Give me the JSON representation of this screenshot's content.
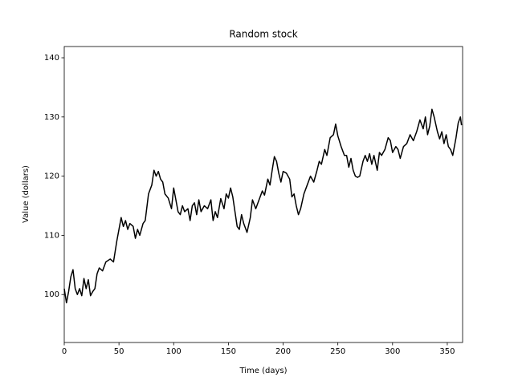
{
  "chart_data": {
    "type": "line",
    "title": "Random stock",
    "x_label": "Time (days)",
    "y_label": "Value (dollars)",
    "x": [
      0,
      2,
      4,
      6,
      8,
      10,
      12,
      14,
      16,
      18,
      20,
      22,
      24,
      26,
      28,
      30,
      32,
      35,
      38,
      42,
      45,
      48,
      50,
      52,
      54,
      56,
      58,
      60,
      63,
      65,
      67,
      69,
      72,
      74,
      77,
      80,
      82,
      84,
      86,
      88,
      90,
      92,
      95,
      98,
      100,
      102,
      104,
      106,
      108,
      110,
      113,
      115,
      117,
      119,
      121,
      123,
      125,
      128,
      131,
      134,
      136,
      138,
      140,
      143,
      146,
      148,
      150,
      152,
      154,
      156,
      158,
      160,
      162,
      164,
      167,
      170,
      172,
      175,
      178,
      181,
      183,
      186,
      188,
      190,
      192,
      194,
      196,
      198,
      200,
      203,
      206,
      208,
      210,
      212,
      214,
      216,
      219,
      222,
      225,
      228,
      231,
      233,
      235,
      238,
      240,
      243,
      246,
      248,
      250,
      253,
      256,
      258,
      260,
      262,
      264,
      266,
      268,
      270,
      273,
      275,
      277,
      279,
      281,
      283,
      286,
      288,
      290,
      293,
      296,
      298,
      300,
      303,
      305,
      307,
      310,
      313,
      316,
      319,
      322,
      325,
      328,
      330,
      332,
      334,
      336,
      338,
      341,
      343,
      345,
      347,
      349,
      351,
      353,
      355,
      358,
      360,
      362,
      363
    ],
    "series": [
      {
        "name": "Value",
        "color": "#000000",
        "values": [
          101,
          98.6,
          100.5,
          103,
          104.2,
          101,
          100,
          101,
          99.8,
          102.7,
          101,
          102.5,
          99.8,
          100.5,
          101,
          103.5,
          104.5,
          104,
          105.5,
          106,
          105.5,
          109,
          111,
          113,
          111.5,
          112.5,
          111,
          112,
          111.5,
          109.5,
          111,
          110,
          112,
          112.5,
          117,
          118.5,
          121,
          120,
          120.8,
          119.5,
          119,
          117,
          116.3,
          114.5,
          118,
          116,
          114,
          113.5,
          115,
          114,
          114.5,
          112.5,
          115,
          115.5,
          113.5,
          116,
          114,
          115,
          114.5,
          116,
          112.5,
          114,
          113,
          116.2,
          114.5,
          117,
          116.3,
          118,
          116.5,
          114,
          111.5,
          111,
          113.5,
          112,
          110.5,
          113,
          116,
          114.5,
          116,
          117.5,
          116.8,
          119.5,
          118.5,
          121,
          123.3,
          122.5,
          120.5,
          119,
          120.8,
          120.5,
          119.5,
          116.5,
          117,
          115,
          113.5,
          114.5,
          117,
          118.5,
          120,
          119,
          121,
          122.5,
          122,
          124.5,
          123.5,
          126.5,
          127,
          128.8,
          126.8,
          125,
          123.5,
          123.5,
          121.5,
          123,
          121,
          120,
          119.8,
          120,
          122.5,
          123.5,
          122.5,
          123.8,
          122,
          123.5,
          121,
          124,
          123.5,
          124.5,
          126.5,
          126,
          124,
          125,
          124.5,
          123,
          125,
          125.5,
          127,
          126,
          127.5,
          129.5,
          128,
          130,
          127,
          128.5,
          131.3,
          130,
          127.5,
          126.3,
          127.5,
          125.5,
          127,
          125,
          124.5,
          123.5,
          126.5,
          129,
          130,
          128.6
        ]
      }
    ],
    "xlim": [
      0,
      364
    ],
    "ylim": [
      91.9,
      141.9
    ],
    "xticks": [
      0,
      50,
      100,
      150,
      200,
      250,
      300,
      350
    ],
    "yticks": [
      100,
      110,
      120,
      130,
      140
    ]
  }
}
